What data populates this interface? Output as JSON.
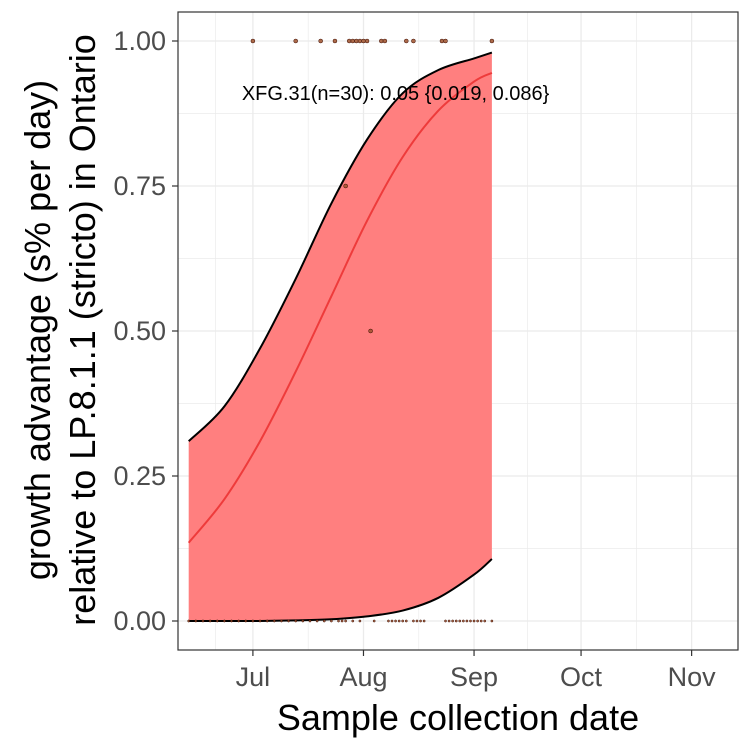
{
  "chart_data": {
    "type": "scatter",
    "title": "",
    "xlabel": "Sample collection date",
    "ylabel_line1": "growth advantage (s% per day)",
    "ylabel_line2": "relative to LP.8.1.1 (stricto) in Ontario",
    "x_range": [
      "2025-06-10",
      "2025-11-14"
    ],
    "ylim": [
      -0.05,
      1.05
    ],
    "x_ticks": [
      {
        "date": "2025-07-01",
        "label": "Jul"
      },
      {
        "date": "2025-08-01",
        "label": "Aug"
      },
      {
        "date": "2025-09-01",
        "label": "Sep"
      },
      {
        "date": "2025-10-01",
        "label": "Oct"
      },
      {
        "date": "2025-11-01",
        "label": "Nov"
      }
    ],
    "y_ticks": [
      {
        "value": 0,
        "label": "0.00"
      },
      {
        "value": 0.25,
        "label": "0.25"
      },
      {
        "value": 0.5,
        "label": "0.50"
      },
      {
        "value": 0.75,
        "label": "0.75"
      },
      {
        "value": 1,
        "label": "1.00"
      }
    ],
    "grid": true,
    "colors": {
      "ribbon": "#ff7f7f",
      "fit_line": "#ee3b3b",
      "ribbon_edge": "#000000",
      "point_fill": "#a0522d",
      "point_edge": "#3a0a00",
      "grid": "#ebebeb",
      "panel_border": "#333333"
    },
    "annotation": "XFG.31(n=30): 0.05 {0.019, 0.086}",
    "annotation_anchor": {
      "date": "2025-08-10",
      "value": 0.91
    },
    "fit": {
      "x": [
        "2025-06-13",
        "2025-06-23",
        "2025-07-03",
        "2025-07-13",
        "2025-07-23",
        "2025-08-02",
        "2025-08-12",
        "2025-08-22",
        "2025-09-01",
        "2025-09-06"
      ],
      "y": [
        0.135,
        0.21,
        0.31,
        0.43,
        0.56,
        0.69,
        0.8,
        0.88,
        0.93,
        0.945
      ]
    },
    "ribbon_upper": {
      "x": [
        "2025-06-13",
        "2025-06-23",
        "2025-07-03",
        "2025-07-13",
        "2025-07-23",
        "2025-08-02",
        "2025-08-12",
        "2025-08-22",
        "2025-09-01",
        "2025-09-06"
      ],
      "y": [
        0.31,
        0.37,
        0.47,
        0.59,
        0.72,
        0.83,
        0.91,
        0.95,
        0.97,
        0.98
      ]
    },
    "ribbon_lower": {
      "x": [
        "2025-06-13",
        "2025-06-23",
        "2025-07-03",
        "2025-07-13",
        "2025-07-23",
        "2025-08-02",
        "2025-08-12",
        "2025-08-22",
        "2025-09-01",
        "2025-09-06"
      ],
      "y": [
        0.0,
        0.0,
        0.0,
        0.001,
        0.003,
        0.008,
        0.018,
        0.04,
        0.08,
        0.107
      ]
    },
    "points": {
      "x": [
        "2025-07-01",
        "2025-07-13",
        "2025-07-20",
        "2025-07-24",
        "2025-07-28",
        "2025-07-29",
        "2025-07-30",
        "2025-07-31",
        "2025-08-01",
        "2025-08-02",
        "2025-08-06",
        "2025-08-07",
        "2025-08-13",
        "2025-08-15",
        "2025-08-23",
        "2025-08-24",
        "2025-09-06",
        "2025-07-27",
        "2025-08-03",
        "2025-06-13",
        "2025-06-15",
        "2025-06-17",
        "2025-06-19",
        "2025-06-21",
        "2025-06-23",
        "2025-06-25",
        "2025-06-27",
        "2025-06-29",
        "2025-07-01",
        "2025-07-03",
        "2025-07-05",
        "2025-07-07",
        "2025-07-09",
        "2025-07-11",
        "2025-07-13",
        "2025-07-15",
        "2025-07-17",
        "2025-07-19",
        "2025-07-21",
        "2025-07-23",
        "2025-07-25",
        "2025-07-26",
        "2025-07-27",
        "2025-07-29",
        "2025-07-31",
        "2025-08-04",
        "2025-08-08",
        "2025-08-09",
        "2025-08-10",
        "2025-08-11",
        "2025-08-12",
        "2025-08-13",
        "2025-08-15",
        "2025-08-16",
        "2025-08-17",
        "2025-08-18",
        "2025-08-24",
        "2025-08-25",
        "2025-08-26",
        "2025-08-27",
        "2025-08-28",
        "2025-08-29",
        "2025-08-30",
        "2025-08-31",
        "2025-09-01",
        "2025-09-02",
        "2025-09-03",
        "2025-09-04",
        "2025-09-06"
      ],
      "y": [
        1,
        1,
        1,
        1,
        1,
        1,
        1,
        1,
        1,
        1,
        1,
        1,
        1,
        1,
        1,
        1,
        1,
        0.75,
        0.5,
        0,
        0,
        0,
        0,
        0,
        0,
        0,
        0,
        0,
        0,
        0,
        0,
        0,
        0,
        0,
        0,
        0,
        0,
        0,
        0,
        0,
        0,
        0,
        0,
        0,
        0,
        0,
        0,
        0,
        0,
        0,
        0,
        0,
        0,
        0,
        0,
        0,
        0,
        0,
        0,
        0,
        0,
        0,
        0,
        0,
        0,
        0,
        0,
        0,
        0
      ]
    }
  }
}
